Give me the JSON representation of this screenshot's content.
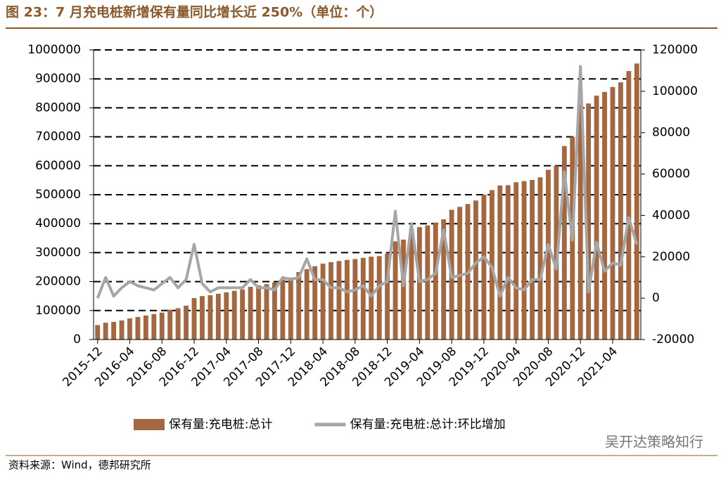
{
  "title": "图 23：7 月充电桩新增保有量同比增长近 250%（单位：个）",
  "source": "资料来源：Wind，德邦研究所",
  "watermark": "吴开达策略知行",
  "chart_data": {
    "type": "bar",
    "categories": [
      "2015-12",
      null,
      null,
      null,
      "2016-04",
      null,
      null,
      null,
      "2016-08",
      null,
      null,
      null,
      "2016-12",
      null,
      null,
      null,
      "2017-04",
      null,
      null,
      null,
      "2017-08",
      null,
      null,
      null,
      "2017-12",
      null,
      null,
      null,
      "2018-04",
      null,
      null,
      null,
      "2018-08",
      null,
      null,
      null,
      "2018-12",
      null,
      null,
      null,
      "2019-04",
      null,
      null,
      null,
      "2019-08",
      null,
      null,
      null,
      "2019-12",
      null,
      null,
      null,
      "2020-04",
      null,
      null,
      null,
      "2020-08",
      null,
      null,
      null,
      "2020-12",
      null,
      null,
      null,
      "2021-04",
      null,
      null,
      null
    ],
    "series": [
      {
        "name": "保有量:充电桩:总计",
        "type": "bar",
        "color": "#a5673f",
        "values": [
          50000,
          58000,
          61000,
          66000,
          73000,
          78000,
          83000,
          88000,
          93000,
          103000,
          108000,
          117000,
          143000,
          150000,
          153000,
          158000,
          163000,
          168000,
          173000,
          182000,
          187000,
          191000,
          197000,
          207000,
          214000,
          233000,
          243000,
          253000,
          262000,
          267000,
          271000,
          275000,
          278000,
          282000,
          286000,
          288000,
          297000,
          339000,
          345000,
          381000,
          388000,
          394000,
          404000,
          415000,
          448000,
          458000,
          468000,
          480000,
          500000,
          516000,
          532000,
          533000,
          543000,
          547000,
          551000,
          560000,
          586000,
          600000,
          668000,
          700000,
          812000,
          815000,
          842000,
          855000,
          872000,
          888000,
          927000,
          953000
        ]
      },
      {
        "name": "保有量:充电桩:总计:环比增加",
        "type": "line",
        "axis": "y2",
        "color": "#a6a6a6",
        "values": [
          0,
          10000,
          1000,
          5000,
          8000,
          6000,
          5000,
          4000,
          7000,
          10000,
          5000,
          9000,
          26000,
          7000,
          3000,
          5000,
          5000,
          5000,
          5000,
          9000,
          5000,
          5000,
          4000,
          10000,
          9000,
          10000,
          19000,
          9000,
          9000,
          5000,
          5000,
          3000,
          4000,
          6000,
          1000,
          6000,
          8000,
          42000,
          6000,
          36000,
          8000,
          9000,
          12000,
          33000,
          10000,
          11000,
          12000,
          17000,
          20000,
          15000,
          1000,
          10000,
          5000,
          4000,
          9000,
          9000,
          26000,
          14000,
          61000,
          28000,
          112000,
          3000,
          27000,
          13000,
          17000,
          16000,
          39000,
          26000
        ]
      }
    ],
    "ylim": [
      0,
      1000000
    ],
    "yticks": [
      0,
      100000,
      200000,
      300000,
      400000,
      500000,
      600000,
      700000,
      800000,
      900000,
      1000000
    ],
    "y2lim": [
      -20000,
      120000
    ],
    "y2ticks": [
      -20000,
      0,
      20000,
      40000,
      60000,
      80000,
      100000,
      120000
    ],
    "grid": true
  }
}
